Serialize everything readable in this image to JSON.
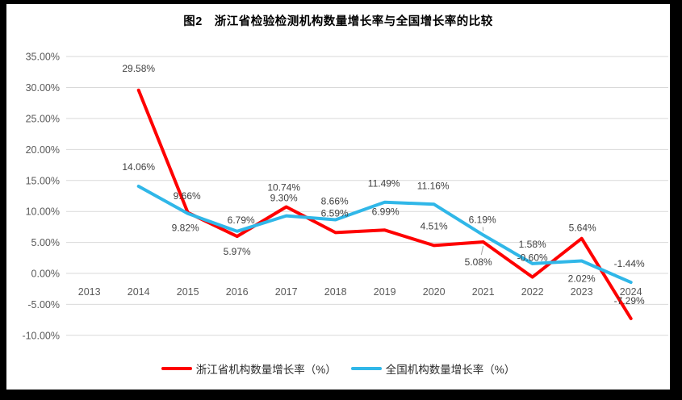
{
  "figure": {
    "title": "图2　浙江省检验检测机构数量增长率与全国增长率的比较"
  },
  "chart_data": {
    "type": "line",
    "title": "图2 浙江省检验检测机构数量增长率与全国增长率的比较",
    "xlabel": "",
    "ylabel": "",
    "categories": [
      "2013",
      "2014",
      "2015",
      "2016",
      "2017",
      "2018",
      "2019",
      "2020",
      "2021",
      "2022",
      "2023",
      "2024"
    ],
    "y_axis": {
      "min": -10,
      "max": 35,
      "step": 5,
      "format": "percent"
    },
    "y_tick_labels": [
      "35.00%",
      "30.00%",
      "25.00%",
      "20.00%",
      "15.00%",
      "10.00%",
      "5.00%",
      "0.00%",
      "-5.00%",
      "-10.00%"
    ],
    "grid": "horizontal",
    "legend_position": "bottom",
    "series": [
      {
        "id": "zhejiang",
        "name": "浙江省机构数量增长率（%）",
        "color": "#FE0000",
        "values": [
          null,
          29.58,
          9.82,
          5.97,
          10.74,
          6.59,
          6.99,
          4.51,
          5.08,
          -0.6,
          5.64,
          -7.29
        ],
        "labels": [
          null,
          "29.58%",
          "9.82%",
          "5.97%",
          "10.74%",
          "6.59%",
          "6.99%",
          "4.51%",
          "5.08%",
          "-0.60%",
          "5.64%",
          "-7.29%"
        ],
        "label_offsets": [
          null,
          [
            0,
            -27
          ],
          [
            -3,
            19
          ],
          [
            0,
            19
          ],
          [
            -3,
            -24
          ],
          [
            -1,
            -24
          ],
          [
            1,
            -23
          ],
          [
            0,
            -24
          ],
          [
            -6,
            25
          ],
          [
            0,
            -24
          ],
          [
            1,
            -13
          ],
          [
            -2,
            -22
          ]
        ],
        "leader_points": [
          8
        ]
      },
      {
        "id": "national",
        "name": "全国机构数量增长率（%）",
        "color": "#30B7E8",
        "values": [
          null,
          14.06,
          9.66,
          6.79,
          9.3,
          8.66,
          11.49,
          11.16,
          6.19,
          1.58,
          2.02,
          -1.44
        ],
        "labels": [
          null,
          "14.06%",
          "9.66%",
          "6.79%",
          "9.30%",
          "8.66%",
          "11.49%",
          "11.16%",
          "6.19%",
          "1.58%",
          "2.02%",
          "-1.44%"
        ],
        "label_offsets": [
          null,
          [
            0,
            -24
          ],
          [
            -1,
            -22
          ],
          [
            5,
            -14
          ],
          [
            -3,
            -22
          ],
          [
            -1,
            -23
          ],
          [
            -1,
            -23
          ],
          [
            -1,
            -23
          ],
          [
            -1,
            -19
          ],
          [
            0,
            -24
          ],
          [
            0,
            22
          ],
          [
            -2,
            -23
          ]
        ],
        "leader_points": [
          8
        ]
      }
    ],
    "style": {
      "gridline_color": "#D9D9D9",
      "axis_text_color": "#595959",
      "data_label_color": "#404040",
      "line_width": 4
    }
  }
}
